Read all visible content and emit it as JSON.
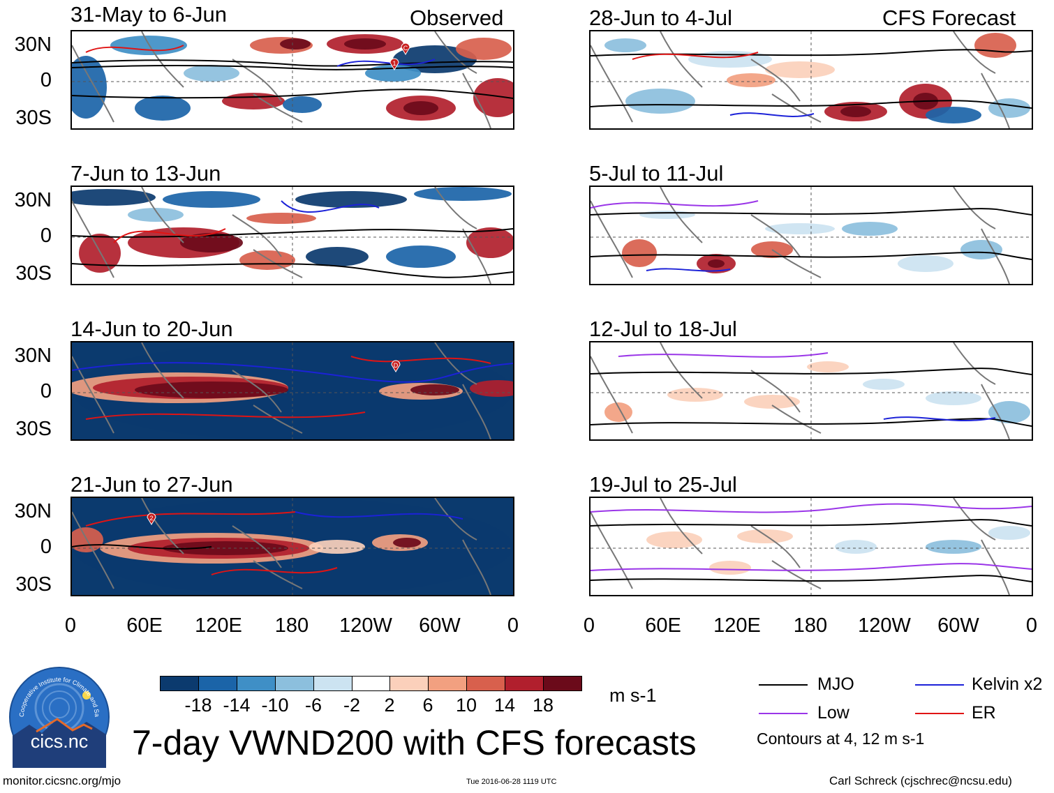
{
  "headers": {
    "observed": "Observed",
    "forecast": "CFS Forecast"
  },
  "panels": [
    {
      "title": "31-May to 6-Jun"
    },
    {
      "title": "7-Jun to 13-Jun"
    },
    {
      "title": "14-Jun to 20-Jun"
    },
    {
      "title": "21-Jun to 27-Jun"
    },
    {
      "title": "28-Jun to 4-Jul"
    },
    {
      "title": "5-Jul to 11-Jul"
    },
    {
      "title": "12-Jul to 18-Jul"
    },
    {
      "title": "19-Jul to 25-Jul"
    }
  ],
  "y_ticks": [
    "30N",
    "0",
    "30S"
  ],
  "x_ticks": [
    "0",
    "60E",
    "120E",
    "180",
    "120W",
    "60W",
    "0"
  ],
  "markers": [
    {
      "label": "1",
      "panel": 0
    },
    {
      "label": "C",
      "panel": 0
    },
    {
      "label": "D",
      "panel": 2
    },
    {
      "label": "2",
      "panel": 3
    }
  ],
  "colorbar": {
    "unit": "m s-1",
    "ticks": [
      "-18",
      "-14",
      "-10",
      "-6",
      "-2",
      "2",
      "6",
      "10",
      "14",
      "18"
    ],
    "colors": [
      "#0b3a6e",
      "#1b64a8",
      "#3f8fc6",
      "#8cbfdd",
      "#cce3f1",
      "#ffffff",
      "#fbd0bb",
      "#f2a080",
      "#d8604d",
      "#b11f2d",
      "#6b0a1a"
    ]
  },
  "legend": {
    "items": [
      {
        "label": "MJO",
        "color": "#000000"
      },
      {
        "label": "Kelvin x2",
        "color": "#1c22d8"
      },
      {
        "label": "Low",
        "color": "#9a35e8"
      },
      {
        "label": "ER",
        "color": "#e01414"
      }
    ],
    "note": "Contours at 4, 12 m s-1"
  },
  "logo_text": "cics.nc",
  "logo_ring": "Cooperative Institute for Climate and Satellites",
  "main_title": "7-day VWND200 with CFS forecasts",
  "footer": {
    "left": "monitor.cicsnc.org/mjo",
    "center": "Tue 2016-06-28 1119 UTC",
    "right": "Carl Schreck (cjschrec@ncsu.edu)"
  },
  "chart_data": {
    "type": "heatmap",
    "title": "7-day VWND200 with CFS forecasts",
    "variable": "200-hPa meridional wind (VWND200)",
    "unit": "m s-1",
    "x_range": [
      "0",
      "0"
    ],
    "y_range": [
      "40S",
      "40N"
    ],
    "x_ticks": [
      "0",
      "60E",
      "120E",
      "180",
      "120W",
      "60W",
      "0"
    ],
    "y_ticks": [
      "30N",
      "0",
      "30S"
    ],
    "color_levels": [
      -18,
      -14,
      -10,
      -6,
      -2,
      2,
      6,
      10,
      14,
      18
    ],
    "contour_levels": [
      4,
      12
    ],
    "contour_series": [
      "MJO",
      "Kelvin x2",
      "Low",
      "ER"
    ],
    "columns": [
      "Observed",
      "CFS Forecast"
    ],
    "periods": [
      "31-May to 6-Jun",
      "7-Jun to 13-Jun",
      "14-Jun to 20-Jun",
      "21-Jun to 27-Jun",
      "28-Jun to 4-Jul",
      "5-Jul to 11-Jul",
      "12-Jul to 18-Jul",
      "19-Jul to 25-Jul"
    ]
  }
}
